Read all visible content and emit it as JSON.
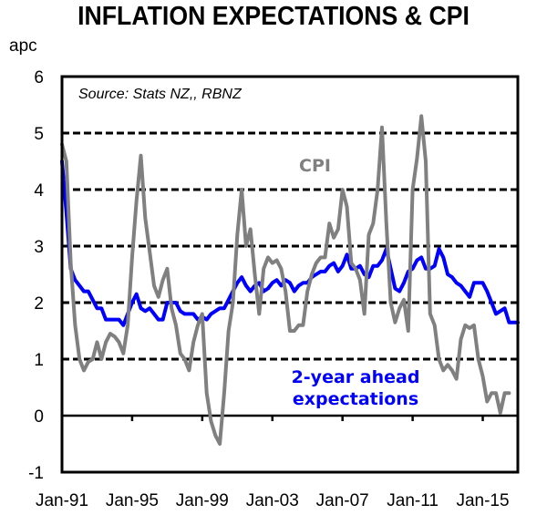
{
  "chart_data": {
    "type": "line",
    "title": "INFLATION EXPECTATIONS & CPI",
    "ylabel": "apc",
    "xlabel": "",
    "source": "Source:  Stats NZ,, RBNZ",
    "ylim": [
      -1,
      6
    ],
    "yticks": [
      "-1",
      "0",
      "1",
      "2",
      "3",
      "4",
      "5",
      "6"
    ],
    "ytick_values": [
      -1,
      0,
      1,
      2,
      3,
      4,
      5,
      6
    ],
    "xlim": [
      1991.0,
      2017.0
    ],
    "xtick_labels": [
      "Jan-91",
      "Jan-95",
      "Jan-99",
      "Jan-03",
      "Jan-07",
      "Jan-11",
      "Jan-15"
    ],
    "xtick_values": [
      1991,
      1995,
      1999,
      2003,
      2007,
      2011,
      2015
    ],
    "grid": "horizontal dashed at 1-5, solid zero line",
    "x_frequency": "quarterly",
    "x_start": 1991.0,
    "x_step": 0.25,
    "annotations": [
      {
        "text": "CPI",
        "series": "CPI"
      },
      {
        "text": "2-year ahead",
        "series": "2-year ahead expectations"
      },
      {
        "text": "expectations",
        "series": "2-year ahead expectations"
      }
    ],
    "series": [
      {
        "name": "CPI",
        "color": "#808080",
        "values": [
          4.8,
          4.5,
          2.7,
          1.6,
          1.0,
          0.8,
          0.95,
          1.0,
          1.3,
          1.0,
          1.3,
          1.45,
          1.4,
          1.3,
          1.1,
          1.6,
          2.8,
          3.8,
          4.6,
          3.5,
          2.9,
          2.3,
          2.1,
          2.4,
          2.6,
          1.9,
          1.6,
          1.1,
          1.0,
          0.8,
          1.3,
          1.6,
          1.8,
          0.4,
          -0.1,
          -0.35,
          -0.5,
          0.4,
          1.5,
          2.0,
          3.2,
          4.0,
          3.0,
          3.3,
          2.5,
          1.8,
          2.6,
          2.8,
          2.7,
          2.75,
          2.6,
          2.2,
          1.5,
          1.5,
          1.6,
          1.6,
          2.2,
          2.5,
          2.7,
          2.8,
          2.8,
          3.4,
          3.15,
          3.3,
          4.0,
          3.7,
          2.7,
          2.6,
          2.4,
          1.8,
          3.2,
          3.4,
          4.0,
          5.1,
          3.4,
          2.0,
          1.65,
          1.9,
          2.05,
          1.5,
          4.0,
          4.55,
          5.3,
          4.5,
          1.8,
          1.6,
          1.0,
          0.8,
          0.9,
          0.8,
          0.65,
          1.35,
          1.6,
          1.55,
          1.6,
          1.0,
          0.7,
          0.25,
          0.4,
          0.4,
          0.05,
          0.4,
          0.4
        ]
      },
      {
        "name": "2-year ahead expectations",
        "color": "#0000ff",
        "values": [
          4.5,
          3.6,
          2.6,
          2.4,
          2.3,
          2.2,
          2.2,
          2.05,
          1.9,
          1.9,
          1.7,
          1.7,
          1.7,
          1.7,
          1.6,
          1.8,
          2.0,
          2.15,
          1.9,
          1.85,
          1.9,
          1.8,
          1.7,
          1.7,
          2.0,
          2.0,
          2.0,
          1.85,
          1.8,
          1.8,
          1.8,
          1.7,
          1.75,
          1.7,
          1.8,
          1.85,
          1.9,
          1.9,
          2.05,
          2.2,
          2.35,
          2.45,
          2.3,
          2.2,
          2.3,
          2.35,
          2.2,
          2.25,
          2.35,
          2.4,
          2.3,
          2.4,
          2.35,
          2.2,
          2.3,
          2.35,
          2.35,
          2.45,
          2.5,
          2.55,
          2.55,
          2.65,
          2.7,
          2.55,
          2.65,
          2.85,
          2.6,
          2.6,
          2.65,
          2.5,
          2.45,
          2.65,
          2.65,
          2.75,
          2.95,
          2.6,
          2.25,
          2.2,
          2.35,
          2.55,
          2.6,
          2.75,
          2.8,
          2.6,
          2.6,
          2.65,
          2.95,
          2.8,
          2.5,
          2.45,
          2.35,
          2.3,
          2.2,
          2.1,
          2.35,
          2.35,
          2.35,
          2.2,
          2.0,
          1.8,
          1.85,
          1.9,
          1.65,
          1.65,
          1.65
        ]
      }
    ]
  }
}
